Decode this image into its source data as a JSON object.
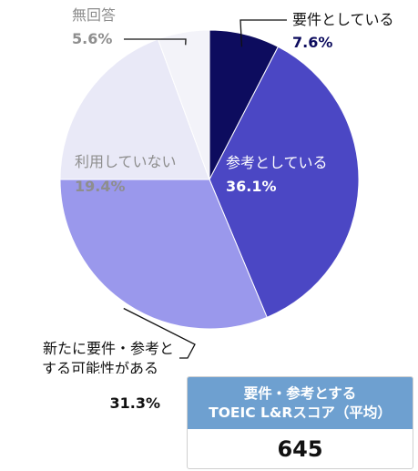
{
  "chart_data": {
    "type": "pie",
    "slices": [
      {
        "label": "要件としている",
        "value": 7.6,
        "value_label": "7.6%",
        "color": "#0d0c5e"
      },
      {
        "label": "参考としている",
        "value": 36.1,
        "value_label": "36.1%",
        "color": "#4b47c4"
      },
      {
        "label": "新たに要件・参考とする可能性がある",
        "label_lines": [
          "新たに要件・参考と",
          "する可能性がある"
        ],
        "value": 31.3,
        "value_label": "31.3%",
        "color": "#9a98ec"
      },
      {
        "label": "利用していない",
        "value": 19.4,
        "value_label": "19.4%",
        "color": "#e9e9f7"
      },
      {
        "label": "無回答",
        "value": 5.6,
        "value_label": "5.6%",
        "color": "#f3f3f9"
      }
    ]
  },
  "score_box": {
    "title_line1": "要件・参考とする",
    "title_line2": "TOEIC L&Rスコア（平均）",
    "value": "645"
  }
}
